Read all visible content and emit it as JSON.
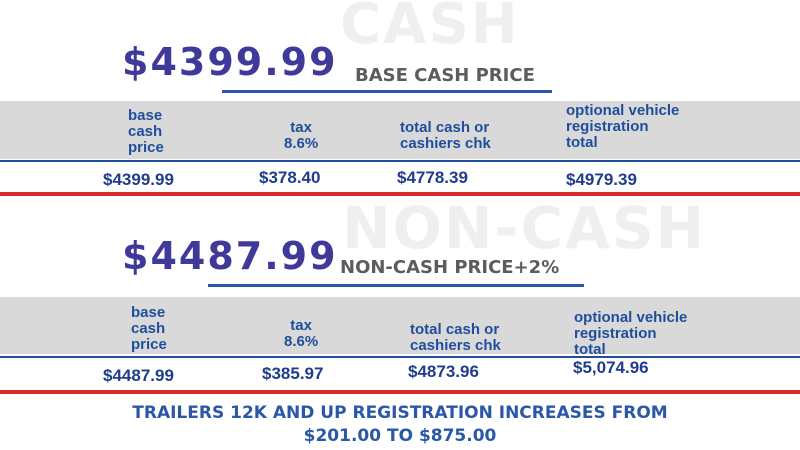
{
  "cash": {
    "watermark": "CASH",
    "price": "$4399.99",
    "price_label": "BASE CASH PRICE",
    "headers": {
      "base": "base\ncash\nprice",
      "tax": "tax\n8.6%",
      "total": "total cash or\ncashiers chk",
      "registration": "optional vehicle\nregistration\ntotal"
    },
    "values": {
      "base": "$4399.99",
      "tax": "$378.40",
      "total": "$4778.39",
      "registration": "$4979.39"
    }
  },
  "noncash": {
    "watermark": "NON-CASH",
    "price": "$4487.99",
    "price_label": "NON-CASH PRICE+2%",
    "headers": {
      "base": "base\ncash\nprice",
      "tax": "tax\n8.6%",
      "total": "total cash or\ncashiers chk",
      "registration": "optional vehicle\nregistration\ntotal"
    },
    "values": {
      "base": "$4487.99",
      "tax": "$385.97",
      "total": "$4873.96",
      "registration": "$5,074.96"
    }
  },
  "footer": {
    "line1": "TRAILERS 12K AND UP REGISTRATION INCREASES FROM",
    "line2": "$201.00 TO $875.00"
  }
}
